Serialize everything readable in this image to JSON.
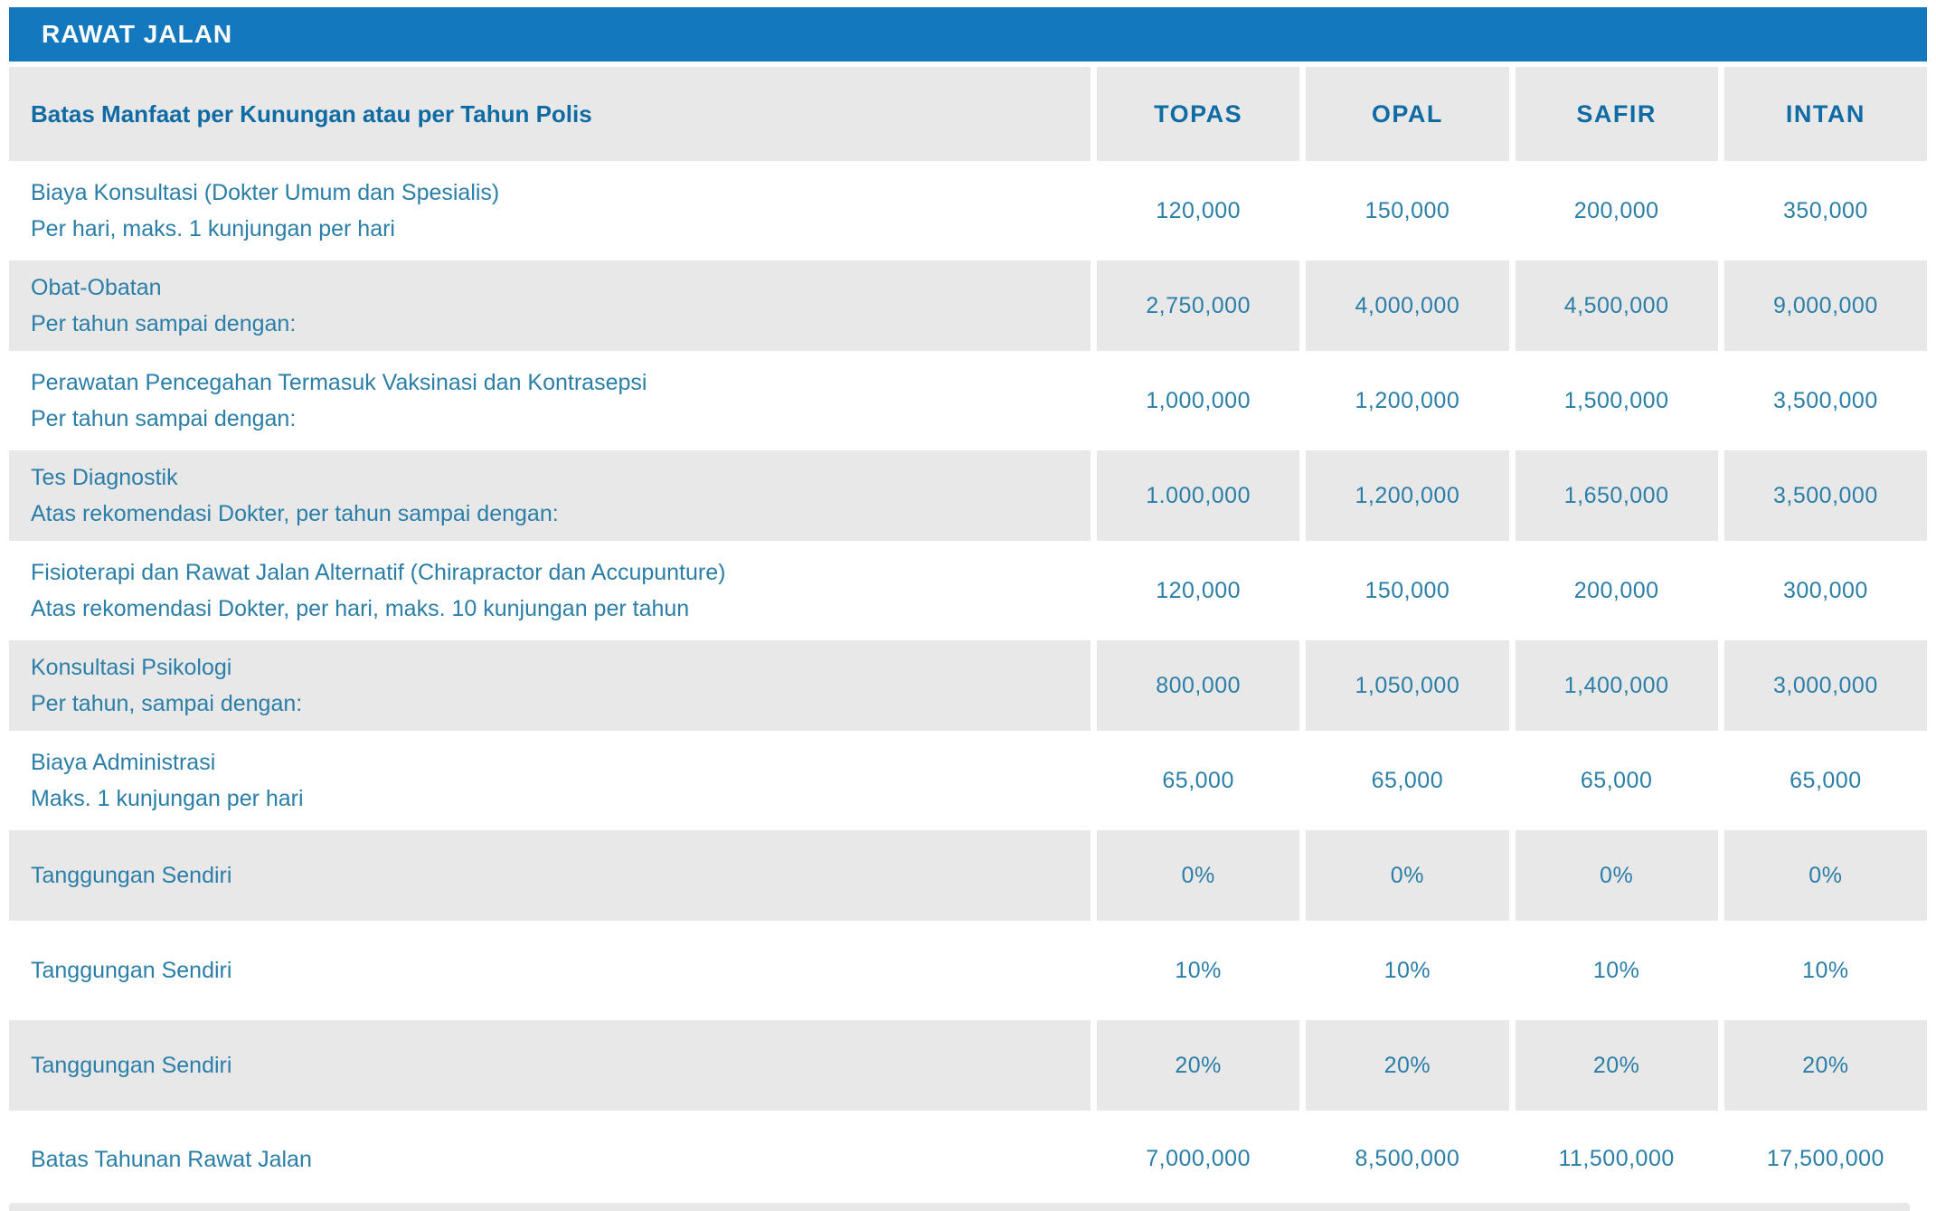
{
  "title_bar": {
    "title": "RAWAT JALAN"
  },
  "colors": {
    "header_bar_blue": "#1378BE",
    "shaded_row_gray": "#E9E8E8",
    "heading_text_blue": "#0F6BA4",
    "body_text_blue": "#2A7EA8",
    "title_text": "#FFFFFF"
  },
  "table": {
    "header": {
      "label": "Batas Manfaat per Kunungan atau per Tahun Polis",
      "columns": [
        "TOPAS",
        "OPAL",
        "SAFIR",
        "INTAN"
      ]
    },
    "rows": [
      {
        "label": "Biaya Konsultasi (Dokter Umum dan Spesialis)",
        "sublabel": "Per hari, maks. 1 kunjungan per hari",
        "values": [
          "120,000",
          "150,000",
          "200,000",
          "350,000"
        ],
        "shaded": false
      },
      {
        "label": "Obat-Obatan",
        "sublabel": "Per tahun sampai dengan:",
        "values": [
          "2,750,000",
          "4,000,000",
          "4,500,000",
          "9,000,000"
        ],
        "shaded": true
      },
      {
        "label": "Perawatan Pencegahan Termasuk Vaksinasi dan Kontrasepsi",
        "sublabel": "Per tahun sampai dengan:",
        "values": [
          "1,000,000",
          "1,200,000",
          "1,500,000",
          "3,500,000"
        ],
        "shaded": false
      },
      {
        "label": "Tes Diagnostik",
        "sublabel": "Atas rekomendasi Dokter, per tahun sampai dengan:",
        "values": [
          "1.000,000",
          "1,200,000",
          "1,650,000",
          "3,500,000"
        ],
        "shaded": true
      },
      {
        "label": "Fisioterapi dan Rawat Jalan Alternatif (Chirapractor dan Accupunture)",
        "sublabel": "Atas rekomendasi Dokter, per hari, maks. 10 kunjungan per tahun",
        "values": [
          "120,000",
          "150,000",
          "200,000",
          "300,000"
        ],
        "shaded": false
      },
      {
        "label": "Konsultasi Psikologi",
        "sublabel": "Per tahun, sampai dengan:",
        "values": [
          "800,000",
          "1,050,000",
          "1,400,000",
          "3,000,000"
        ],
        "shaded": true
      },
      {
        "label": "Biaya Administrasi",
        "sublabel": "Maks. 1 kunjungan per hari",
        "values": [
          "65,000",
          "65,000",
          "65,000",
          "65,000"
        ],
        "shaded": false
      },
      {
        "label": "Tanggungan Sendiri",
        "sublabel": "",
        "values": [
          "0%",
          "0%",
          "0%",
          "0%"
        ],
        "shaded": true
      },
      {
        "label": "Tanggungan Sendiri",
        "sublabel": "",
        "values": [
          "10%",
          "10%",
          "10%",
          "10%"
        ],
        "shaded": false
      },
      {
        "label": "Tanggungan Sendiri",
        "sublabel": "",
        "values": [
          "20%",
          "20%",
          "20%",
          "20%"
        ],
        "shaded": true
      },
      {
        "label": "Batas Tahunan Rawat Jalan",
        "sublabel": "",
        "values": [
          "7,000,000",
          "8,500,000",
          "11,500,000",
          "17,500,000"
        ],
        "shaded": false
      }
    ]
  }
}
